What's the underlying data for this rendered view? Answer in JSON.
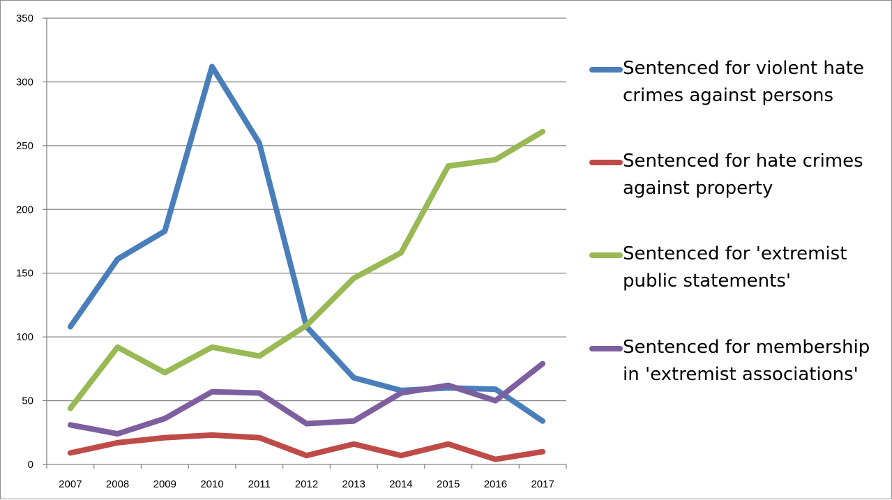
{
  "chart_data": {
    "type": "line",
    "title": "",
    "xlabel": "",
    "ylabel": "",
    "ylim": [
      0,
      350
    ],
    "yticks": [
      0,
      50,
      100,
      150,
      200,
      250,
      300,
      350
    ],
    "categories": [
      "2007",
      "2008",
      "2009",
      "2010",
      "2011",
      "2012",
      "2013",
      "2014",
      "2015",
      "2016",
      "2017"
    ],
    "grid": "horizontal",
    "legend_position": "right",
    "series": [
      {
        "name": "Sentenced for violent hate crimes against persons",
        "color": "#4a7ebb",
        "values": [
          108,
          161,
          183,
          312,
          252,
          108,
          68,
          58,
          60,
          59,
          34
        ]
      },
      {
        "name": "Sentenced for hate crimes against property",
        "color": "#be4b48",
        "values": [
          9,
          17,
          21,
          23,
          21,
          7,
          16,
          7,
          16,
          4,
          10
        ]
      },
      {
        "name": "Sentenced for 'extremist public statements'",
        "color": "#98b954",
        "values": [
          44,
          92,
          72,
          92,
          85,
          109,
          146,
          166,
          234,
          239,
          261
        ]
      },
      {
        "name": "Sentenced for membership in 'extremist associations'",
        "color": "#7d5fa0",
        "values": [
          31,
          24,
          36,
          57,
          56,
          32,
          34,
          56,
          62,
          50,
          79
        ]
      }
    ]
  }
}
